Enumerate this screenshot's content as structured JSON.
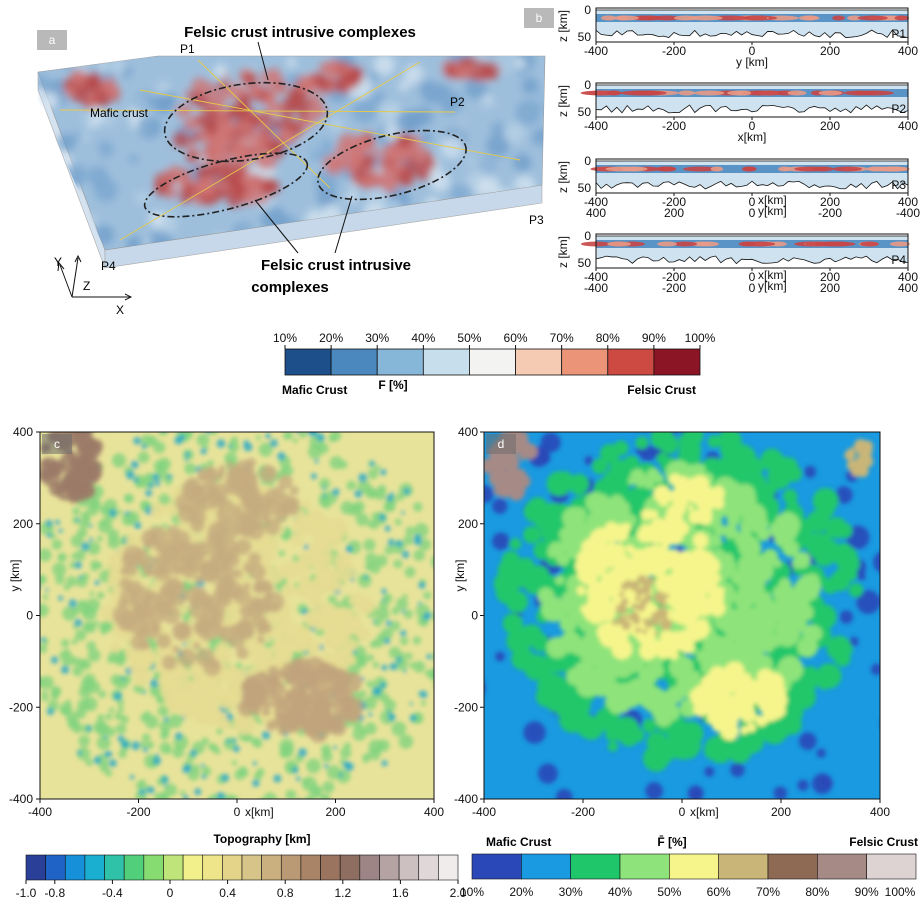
{
  "panel_a": {
    "letter": "a",
    "title_top": "Felsic crust intrusive complexes",
    "title_bottom_1": "Felsic crust intrusive",
    "title_bottom_2": "complexes",
    "mafic_label": "Mafic crust",
    "profile_labels": [
      "P1",
      "P2",
      "P3",
      "P4"
    ],
    "axis_labels": {
      "z": "Z",
      "y": "Y",
      "x": "X"
    }
  },
  "panel_b": {
    "letter": "b",
    "zlabel": "z [km]",
    "zticks": [
      "0",
      "50"
    ],
    "profiles": [
      {
        "name": "P1",
        "ticks": [
          "-400",
          "-200",
          "0",
          "200",
          "400"
        ],
        "xlabel": "y [km]"
      },
      {
        "name": "P2",
        "ticks": [
          "-400",
          "-200",
          "0",
          "200",
          "400"
        ],
        "xlabel": "x[km]"
      },
      {
        "name": "P3",
        "ticks_top": [
          "-400",
          "-200",
          "0",
          "200",
          "400"
        ],
        "ticks_bottom": [
          "400",
          "200",
          "0",
          "-200",
          "-400"
        ],
        "xlabel_top": "x[km]",
        "xlabel_bottom": "y[km]"
      },
      {
        "name": "P4",
        "ticks_top": [
          "-400",
          "-200",
          "0",
          "200",
          "400"
        ],
        "ticks_bottom": [
          "-400",
          "-200",
          "0",
          "200",
          "400"
        ],
        "xlabel_top": "x[km]",
        "xlabel_bottom": "y[km]"
      }
    ]
  },
  "colorbar_F": {
    "ticks": [
      "10%",
      "20%",
      "30%",
      "40%",
      "50%",
      "60%",
      "70%",
      "80%",
      "90%",
      "100%"
    ],
    "colors": [
      "#1d4f8a",
      "#4a88be",
      "#86b6d8",
      "#c7dfec",
      "#f3f3f1",
      "#f6cbb3",
      "#ec9478",
      "#cc4a42",
      "#8b1525"
    ],
    "left_label": "Mafic Crust",
    "center_label": "F [%]",
    "right_label": "Felsic Crust"
  },
  "panel_c": {
    "letter": "c",
    "xticks": [
      "-400",
      "-200",
      "0",
      "200",
      "400"
    ],
    "yticks": [
      "400",
      "200",
      "0",
      "-200",
      "-400"
    ],
    "xlabel": "x[km]",
    "ylabel": "y [km]",
    "colorbar_title": "Topography [km]",
    "colorbar_ticks": [
      "-1.0",
      "-0.8",
      "-0.4",
      "0",
      "0.4",
      "0.8",
      "1.2",
      "1.6",
      "2.0"
    ],
    "colorbar_colors": [
      "#2a3f98",
      "#1f63c6",
      "#1690d8",
      "#1aaed0",
      "#2fc2a8",
      "#52cf7a",
      "#86dc70",
      "#bfe57a",
      "#f2f08a",
      "#eee58a",
      "#e3d48a",
      "#d7c488",
      "#c9b07e",
      "#ba9a74",
      "#a98466",
      "#9a745f",
      "#8f6e62",
      "#9c8584",
      "#b5a3a3",
      "#ccc0c0",
      "#e0d8d8",
      "#f0ecec"
    ]
  },
  "panel_d": {
    "letter": "d",
    "xticks": [
      "-400",
      "-200",
      "0",
      "200",
      "400"
    ],
    "yticks": [
      "400",
      "200",
      "0",
      "-200",
      "-400"
    ],
    "xlabel": "x[km]",
    "ylabel": "y [km]",
    "colorbar_left": "Mafic Crust",
    "colorbar_center": "F̄ [%]",
    "colorbar_right": "Felsic Crust",
    "colorbar_ticks": [
      "10%",
      "20%",
      "30%",
      "40%",
      "50%",
      "60%",
      "70%",
      "80%",
      "90%",
      "100%"
    ],
    "colorbar_colors": [
      "#2a48b8",
      "#1a9ae0",
      "#20c76a",
      "#8ee37a",
      "#f6f58c",
      "#c9b577",
      "#8e6a55",
      "#a68a86",
      "#ddd3d3"
    ]
  }
}
